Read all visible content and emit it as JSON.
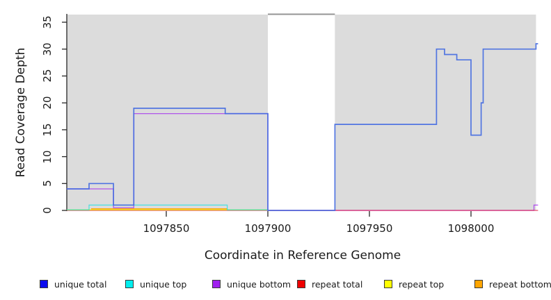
{
  "figure": {
    "background": "#ffffff",
    "shade_color": "#dcdcdc",
    "gap_cap_color": "#949494",
    "axis_color": "#262626"
  },
  "chart_data": {
    "type": "line",
    "subtype": "step",
    "title": "",
    "xlabel": "Coordinate in Reference Genome",
    "ylabel": "Read Coverage Depth",
    "xlim": [
      1097801,
      1098033
    ],
    "ylim": [
      0,
      36.4
    ],
    "x_ticks": [
      1097850,
      1097900,
      1097950,
      1098000
    ],
    "x_tick_labels": [
      "1097850",
      "1097900",
      "1097950",
      "1098000"
    ],
    "y_ticks": [
      0,
      5,
      10,
      15,
      20,
      25,
      30,
      35
    ],
    "y_tick_labels": [
      "0",
      "5",
      "10",
      "15",
      "20",
      "25",
      "30",
      "35"
    ],
    "grid": false,
    "legend_position": "bottom",
    "shaded_regions": [
      [
        1097801,
        1097900
      ],
      [
        1097933,
        1098032
      ]
    ],
    "gap_region": [
      1097900,
      1097933
    ],
    "series": [
      {
        "name": "unique-total",
        "label": "unique total",
        "legend_color": "#0b0bee",
        "line_color": "#4169e1",
        "opacity": 0.9,
        "width": 1.7,
        "z": 6,
        "steps": [
          [
            1097801,
            4
          ],
          [
            1097812,
            5
          ],
          [
            1097824,
            1
          ],
          [
            1097834,
            19
          ],
          [
            1097879,
            18
          ],
          [
            1097900,
            0
          ],
          [
            1097933,
            16
          ],
          [
            1097983,
            30
          ],
          [
            1097987,
            29
          ],
          [
            1097993,
            28
          ],
          [
            1098000,
            14
          ],
          [
            1098005,
            20
          ],
          [
            1098006,
            30
          ],
          [
            1098032,
            31
          ],
          [
            1098033,
            31
          ]
        ]
      },
      {
        "name": "unique-top",
        "label": "unique top",
        "legend_color": "#00eeee",
        "line_color": "#00e0e0",
        "opacity": 0.62,
        "width": 1.3,
        "z": 5,
        "steps": [
          [
            1097801,
            0.1
          ],
          [
            1097812,
            1
          ],
          [
            1097880,
            0.1
          ],
          [
            1097900,
            0.1
          ]
        ]
      },
      {
        "name": "unique-bottom",
        "label": "unique bottom",
        "legend_color": "#a020f0",
        "line_color": "#a020f0",
        "opacity": 0.72,
        "width": 1.3,
        "z": 1,
        "steps": [
          [
            1097801,
            4
          ],
          [
            1097824,
            0.5
          ],
          [
            1097834,
            18
          ],
          [
            1097900,
            0
          ],
          [
            1098031,
            1
          ],
          [
            1098033,
            1
          ]
        ]
      },
      {
        "name": "repeat-total",
        "label": "repeat total",
        "legend_color": "#ee0000",
        "line_color": "#dc143c",
        "opacity": 0.75,
        "width": 1.3,
        "z": 2,
        "steps": [
          [
            1097801,
            0
          ],
          [
            1098033,
            0
          ]
        ]
      },
      {
        "name": "repeat-top",
        "label": "repeat top",
        "legend_color": "#ffff00",
        "line_color": "#eeee00",
        "opacity": 1,
        "width": 1.2,
        "z": 3,
        "steps": [
          [
            1097801,
            0.1
          ],
          [
            1097900,
            0.1
          ]
        ]
      },
      {
        "name": "repeat-bottom",
        "label": "repeat bottom",
        "legend_color": "#ffa500",
        "line_color": "#ffa500",
        "opacity": 1,
        "width": 1.4,
        "z": 4,
        "steps": [
          [
            1097813,
            0.3
          ],
          [
            1097880,
            0.3
          ]
        ]
      }
    ]
  },
  "legend": {
    "items": [
      "unique total",
      "unique top",
      "unique bottom",
      "repeat total",
      "repeat top",
      "repeat bottom"
    ]
  }
}
